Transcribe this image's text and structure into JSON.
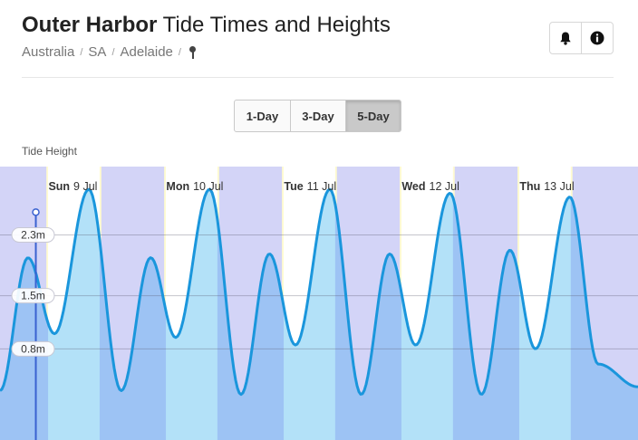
{
  "header": {
    "location": "Outer Harbor",
    "title_suffix": "Tide Times and Heights"
  },
  "breadcrumb": {
    "items": [
      "Australia",
      "SA",
      "Adelaide"
    ],
    "separator": "/"
  },
  "icons": {
    "alerts": "bell-icon",
    "info": "info-icon"
  },
  "range_selector": {
    "options": [
      "1-Day",
      "3-Day",
      "5-Day"
    ],
    "selected": "5-Day"
  },
  "chart_label": "Tide Height",
  "colors": {
    "night": "#d3d4f7",
    "twilight": "#fffbd0",
    "day": "#ffffff",
    "tide_line": "#1a96dc",
    "tide_fill_day": "#b3e1f8",
    "tide_fill_night": "#9dc3f4",
    "now_marker": "#3a62d0"
  },
  "chart_data": {
    "type": "area",
    "title": "",
    "xlabel": "",
    "ylabel": "Tide Height",
    "x_unit": "hours",
    "y_unit": "m",
    "y_ticks": [
      {
        "value": 0.8,
        "label": "0.8m"
      },
      {
        "value": 1.5,
        "label": "1.5m"
      },
      {
        "value": 2.3,
        "label": "2.3m"
      }
    ],
    "ylim": [
      -0.4,
      3.2
    ],
    "xlim": [
      -9.5,
      120.5
    ],
    "day_labels": [
      {
        "day": "Sun",
        "date": "9 Jul",
        "hour": 0
      },
      {
        "day": "Mon",
        "date": "10 Jul",
        "hour": 24
      },
      {
        "day": "Tue",
        "date": "11 Jul",
        "hour": 48
      },
      {
        "day": "Wed",
        "date": "12 Jul",
        "hour": 72
      },
      {
        "day": "Thu",
        "date": "13 Jul",
        "hour": 96
      }
    ],
    "now_hour": -2.2,
    "now_height": 2.6,
    "daylight": [
      {
        "sunrise": 0.3,
        "sunset": 10.8
      },
      {
        "sunrise": 24.3,
        "sunset": 34.8
      },
      {
        "sunrise": 48.3,
        "sunset": 58.8
      },
      {
        "sunrise": 72.3,
        "sunset": 82.8
      },
      {
        "sunrise": 96.3,
        "sunset": 106.8
      }
    ],
    "twilight_hours": 0.35,
    "series": [
      {
        "values": [
          {
            "x": -9.5,
            "y": 0.25
          },
          {
            "x": -3.8,
            "y": 2.0
          },
          {
            "x": 1.6,
            "y": 1.0
          },
          {
            "x": 8.6,
            "y": 2.9
          },
          {
            "x": 15.2,
            "y": 0.25
          },
          {
            "x": 21.2,
            "y": 2.0
          },
          {
            "x": 26.3,
            "y": 0.95
          },
          {
            "x": 33.2,
            "y": 2.9
          },
          {
            "x": 39.6,
            "y": 0.2
          },
          {
            "x": 45.4,
            "y": 2.05
          },
          {
            "x": 50.7,
            "y": 0.85
          },
          {
            "x": 57.7,
            "y": 2.9
          },
          {
            "x": 64.1,
            "y": 0.2
          },
          {
            "x": 69.9,
            "y": 2.05
          },
          {
            "x": 75.2,
            "y": 0.85
          },
          {
            "x": 82.2,
            "y": 2.85
          },
          {
            "x": 88.6,
            "y": 0.2
          },
          {
            "x": 94.4,
            "y": 2.1
          },
          {
            "x": 99.6,
            "y": 0.8
          },
          {
            "x": 106.6,
            "y": 2.8
          },
          {
            "x": 112.4,
            "y": 0.6
          },
          {
            "x": 120.5,
            "y": 0.3
          }
        ]
      }
    ]
  }
}
